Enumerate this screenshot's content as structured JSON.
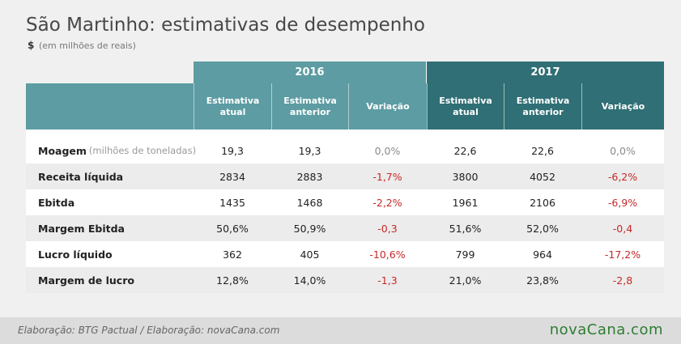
{
  "header": {
    "title": "São Martinho: estimativas de desempenho",
    "currency": "$",
    "subtitle": "(em milhões de reais)"
  },
  "table": {
    "groups": [
      "2016",
      "2017"
    ],
    "columns": [
      "Estimativa atual",
      "Estimativa anterior",
      "Variação",
      "Estimativa atual",
      "Estimativa anterior",
      "Variação"
    ],
    "rows": [
      {
        "label": "Moagem",
        "note": "(milhões de toneladas)",
        "cells": [
          "19,3",
          "19,3",
          "0,0%",
          "22,6",
          "22,6",
          "0,0%"
        ]
      },
      {
        "label": "Receita líquida",
        "cells": [
          "2834",
          "2883",
          "-1,7%",
          "3800",
          "4052",
          "-6,2%"
        ]
      },
      {
        "label": "Ebitda",
        "cells": [
          "1435",
          "1468",
          "-2,2%",
          "1961",
          "2106",
          "-6,9%"
        ]
      },
      {
        "label": "Margem Ebitda",
        "cells": [
          "50,6%",
          "50,9%",
          "-0,3",
          "51,6%",
          "52,0%",
          "-0,4"
        ]
      },
      {
        "label": "Lucro líquido",
        "cells": [
          "362",
          "405",
          "-10,6%",
          "799",
          "964",
          "-17,2%"
        ]
      },
      {
        "label": "Margem de lucro",
        "cells": [
          "12,8%",
          "14,0%",
          "-1,3",
          "21,0%",
          "23,8%",
          "-2,8"
        ]
      }
    ]
  },
  "footer": {
    "source": "Elaboração: BTG Pactual / Elaboração: novaCana.com",
    "logo": "novaCana.com"
  }
}
